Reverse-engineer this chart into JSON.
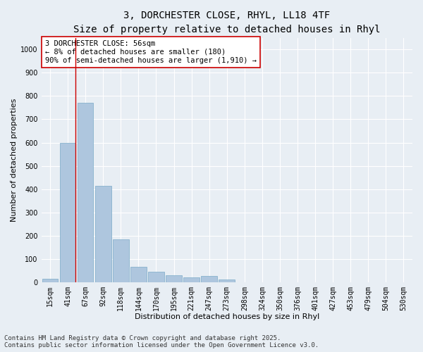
{
  "title_line1": "3, DORCHESTER CLOSE, RHYL, LL18 4TF",
  "title_line2": "Size of property relative to detached houses in Rhyl",
  "xlabel": "Distribution of detached houses by size in Rhyl",
  "ylabel": "Number of detached properties",
  "categories": [
    "15sqm",
    "41sqm",
    "67sqm",
    "92sqm",
    "118sqm",
    "144sqm",
    "170sqm",
    "195sqm",
    "221sqm",
    "247sqm",
    "273sqm",
    "298sqm",
    "324sqm",
    "350sqm",
    "376sqm",
    "401sqm",
    "427sqm",
    "453sqm",
    "479sqm",
    "504sqm",
    "530sqm"
  ],
  "values": [
    15,
    600,
    770,
    415,
    185,
    65,
    45,
    30,
    20,
    25,
    10,
    0,
    0,
    0,
    0,
    0,
    0,
    0,
    0,
    0,
    0
  ],
  "bar_color": "#aec6de",
  "bar_edge_color": "#7aaac8",
  "background_color": "#e8eef4",
  "grid_color": "#ffffff",
  "vline_color": "#cc0000",
  "vline_x": 1.42,
  "annotation_text": "3 DORCHESTER CLOSE: 56sqm\n← 8% of detached houses are smaller (180)\n90% of semi-detached houses are larger (1,910) →",
  "annotation_box_facecolor": "#ffffff",
  "annotation_box_edgecolor": "#cc0000",
  "ylim": [
    0,
    1050
  ],
  "yticks": [
    0,
    100,
    200,
    300,
    400,
    500,
    600,
    700,
    800,
    900,
    1000
  ],
  "footnote": "Contains HM Land Registry data © Crown copyright and database right 2025.\nContains public sector information licensed under the Open Government Licence v3.0.",
  "title_fontsize": 10,
  "subtitle_fontsize": 9,
  "axis_label_fontsize": 8,
  "tick_fontsize": 7,
  "annotation_fontsize": 7.5,
  "footnote_fontsize": 6.5
}
